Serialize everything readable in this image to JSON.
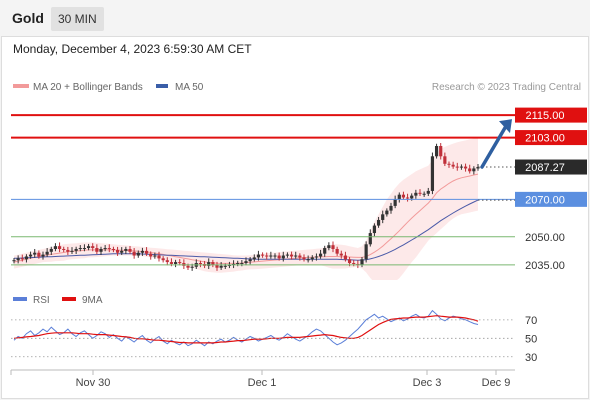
{
  "header": {
    "symbol": "Gold",
    "timeframe": "30 MIN",
    "datetime": "Monday, December 4, 2023 6:59:30 AM CET"
  },
  "colors": {
    "red_level": "#e01010",
    "blue_level": "#5b8fe0",
    "green_level": "#7ab870",
    "current_price_bg": "#2a2a2a",
    "arrow": "#2e5fa0",
    "bb_fill": "#fde3e3",
    "ma20": "#f29a9a",
    "ma50": "#4a5aa8",
    "rsi": "#5b7fd8",
    "rsi_ma": "#e01010"
  },
  "chart_data": [
    {
      "type": "line",
      "title": "",
      "legend": [
        {
          "name": "MA 20 + Bollinger Bands",
          "color": "#f29a9a"
        },
        {
          "name": "MA 50",
          "color": "#3a5ea8"
        }
      ],
      "legend_position": "top-left",
      "credit": "Research © 2023 Trading Central",
      "x_ticks": [
        "Nov 30",
        "Dec 1",
        "Dec 3",
        "Dec 9"
      ],
      "ylim": [
        2028,
        2122
      ],
      "key_levels": [
        {
          "value": 2115.0,
          "label": "2115.00",
          "kind": "resistance",
          "style": "red-box"
        },
        {
          "value": 2103.0,
          "label": "2103.00",
          "kind": "resistance",
          "style": "red-box"
        },
        {
          "value": 2070.0,
          "label": "2070.00",
          "kind": "pivot",
          "style": "blue-box"
        },
        {
          "value": 2050.0,
          "label": "2050.00",
          "kind": "support",
          "style": "green-text"
        },
        {
          "value": 2035.0,
          "label": "2035.00",
          "kind": "support",
          "style": "green-text"
        }
      ],
      "current_price": {
        "value": 2087.27,
        "label": "2087.27"
      },
      "projection": {
        "from": 2087.27,
        "to": 2115.0,
        "direction": "up"
      },
      "price_close": [
        2037.5,
        2038.5,
        2038.0,
        2039.5,
        2040.5,
        2041.5,
        2039.5,
        2040.5,
        2042.0,
        2043.5,
        2045.0,
        2043.5,
        2043.0,
        2042.0,
        2042.5,
        2043.5,
        2044.0,
        2044.0,
        2045.0,
        2044.0,
        2042.0,
        2043.5,
        2044.0,
        2043.5,
        2043.0,
        2041.5,
        2042.5,
        2043.5,
        2042.0,
        2040.0,
        2041.5,
        2042.5,
        2041.0,
        2039.5,
        2040.0,
        2038.5,
        2037.5,
        2036.5,
        2035.5,
        2036.5,
        2036.0,
        2034.5,
        2033.5,
        2034.0,
        2036.0,
        2035.5,
        2034.5,
        2036.5,
        2035.0,
        2033.5,
        2034.5,
        2034.5,
        2035.0,
        2035.5,
        2036.0,
        2036.0,
        2037.0,
        2038.0,
        2039.0,
        2040.5,
        2040.0,
        2039.5,
        2040.0,
        2040.0,
        2038.5,
        2040.0,
        2040.5,
        2039.5,
        2040.0,
        2039.0,
        2038.0,
        2038.0,
        2039.0,
        2039.5,
        2041.0,
        2044.0,
        2045.5,
        2043.5,
        2041.0,
        2040.0,
        2038.0,
        2036.0,
        2035.5,
        2035.0,
        2038.0,
        2046.0,
        2052.0,
        2056.0,
        2059.0,
        2062.0,
        2064.0,
        2066.5,
        2070.0,
        2072.5,
        2071.0,
        2070.5,
        2072.0,
        2073.5,
        2073.0,
        2073.0,
        2074.5,
        2093.0,
        2098.5,
        2093.0,
        2089.0,
        2088.5,
        2087.5,
        2087.0,
        2087.5,
        2086.5,
        2085.0,
        2086.5,
        2087.3
      ],
      "ma20": [
        2036.5,
        2037.0,
        2037.5,
        2038.0,
        2038.5,
        2039.0,
        2039.5,
        2040.0,
        2040.3,
        2040.6,
        2041.0,
        2041.3,
        2041.6,
        2042.0,
        2042.2,
        2042.4,
        2042.6,
        2042.8,
        2043.0,
        2043.0,
        2043.0,
        2043.0,
        2043.0,
        2043.0,
        2043.0,
        2042.9,
        2042.8,
        2042.7,
        2042.6,
        2042.5,
        2042.3,
        2042.1,
        2041.9,
        2041.6,
        2041.3,
        2041.0,
        2040.6,
        2040.2,
        2039.8,
        2039.4,
        2039.0,
        2038.6,
        2038.2,
        2037.8,
        2037.4,
        2037.0,
        2036.6,
        2036.3,
        2036.1,
        2035.9,
        2035.8,
        2035.8,
        2035.8,
        2035.8,
        2035.9,
        2036.0,
        2036.2,
        2036.4,
        2036.6,
        2036.8,
        2037.0,
        2037.2,
        2037.4,
        2037.6,
        2037.8,
        2038.0,
        2038.2,
        2038.4,
        2038.6,
        2038.8,
        2038.9,
        2039.0,
        2039.1,
        2039.2,
        2039.3,
        2039.4,
        2039.5,
        2039.5,
        2039.5,
        2039.4,
        2039.3,
        2039.2,
        2039.1,
        2039.0,
        2039.0,
        2039.5,
        2040.5,
        2041.8,
        2043.3,
        2045.0,
        2047.0,
        2049.0,
        2051.0,
        2053.2,
        2055.5,
        2057.8,
        2060.0,
        2062.0,
        2064.0,
        2066.0,
        2068.0,
        2070.5,
        2073.5,
        2075.5,
        2077.0,
        2078.5,
        2079.8,
        2080.8,
        2081.5,
        2082.0,
        2082.5,
        2083.0,
        2083.5
      ],
      "bb_upper": [
        2040.0,
        2040.5,
        2041.0,
        2041.5,
        2042.0,
        2042.5,
        2043.0,
        2043.5,
        2044.0,
        2044.5,
        2045.0,
        2045.5,
        2046.0,
        2046.2,
        2046.4,
        2046.6,
        2046.8,
        2047.0,
        2047.0,
        2047.0,
        2046.8,
        2046.6,
        2046.4,
        2046.2,
        2046.0,
        2045.8,
        2045.6,
        2045.4,
        2045.2,
        2045.0,
        2044.8,
        2044.6,
        2044.4,
        2044.2,
        2044.0,
        2043.8,
        2043.6,
        2043.4,
        2043.2,
        2043.0,
        2042.8,
        2042.6,
        2042.4,
        2042.2,
        2042.0,
        2041.8,
        2041.6,
        2041.4,
        2041.2,
        2041.0,
        2040.8,
        2040.6,
        2040.4,
        2040.2,
        2040.0,
        2040.0,
        2040.0,
        2040.2,
        2040.5,
        2040.8,
        2041.0,
        2041.2,
        2041.4,
        2041.6,
        2041.8,
        2042.0,
        2042.2,
        2042.4,
        2042.6,
        2042.8,
        2043.0,
        2043.2,
        2043.4,
        2043.6,
        2043.8,
        2044.5,
        2045.5,
        2046.0,
        2046.0,
        2045.8,
        2045.5,
        2045.0,
        2044.5,
        2044.0,
        2045.0,
        2048.0,
        2053.0,
        2058.0,
        2062.0,
        2066.0,
        2070.0,
        2073.0,
        2076.0,
        2078.5,
        2080.5,
        2082.0,
        2083.5,
        2085.0,
        2086.0,
        2087.0,
        2088.0,
        2091.0,
        2095.0,
        2097.0,
        2098.0,
        2099.0,
        2099.8,
        2100.5,
        2101.0,
        2101.5,
        2102.0,
        2102.5,
        2103.0
      ],
      "bb_lower": [
        2033.0,
        2033.5,
        2034.0,
        2034.5,
        2035.0,
        2035.5,
        2036.0,
        2036.5,
        2036.6,
        2036.7,
        2037.0,
        2037.1,
        2037.2,
        2037.8,
        2038.0,
        2038.2,
        2038.4,
        2038.6,
        2039.0,
        2039.0,
        2039.2,
        2039.4,
        2039.6,
        2039.8,
        2040.0,
        2040.0,
        2040.0,
        2040.0,
        2040.0,
        2040.0,
        2039.8,
        2039.6,
        2039.4,
        2039.0,
        2038.6,
        2038.2,
        2037.6,
        2037.0,
        2036.4,
        2035.8,
        2035.2,
        2034.6,
        2034.0,
        2033.4,
        2032.8,
        2032.2,
        2031.6,
        2031.2,
        2031.0,
        2030.8,
        2030.8,
        2031.0,
        2031.2,
        2031.4,
        2031.8,
        2032.0,
        2032.4,
        2032.6,
        2032.7,
        2032.8,
        2033.0,
        2033.2,
        2033.4,
        2033.6,
        2033.8,
        2034.0,
        2034.2,
        2034.4,
        2034.6,
        2034.8,
        2034.8,
        2034.8,
        2034.8,
        2034.8,
        2034.8,
        2034.3,
        2033.5,
        2033.0,
        2033.0,
        2033.0,
        2033.1,
        2033.4,
        2033.7,
        2034.0,
        2033.0,
        2031.0,
        2028.0,
        2025.6,
        2024.6,
        2024.0,
        2024.0,
        2025.0,
        2026.0,
        2027.9,
        2030.5,
        2033.6,
        2036.5,
        2039.0,
        2042.0,
        2045.0,
        2048.0,
        2050.0,
        2052.0,
        2054.0,
        2056.0,
        2058.0,
        2059.8,
        2061.1,
        2062.0,
        2062.5,
        2063.0,
        2063.5,
        2064.0
      ],
      "ma50": [
        2038.5,
        2038.6,
        2038.7,
        2038.8,
        2038.9,
        2039.0,
        2039.1,
        2039.2,
        2039.3,
        2039.4,
        2039.5,
        2039.6,
        2039.7,
        2039.8,
        2039.9,
        2040.0,
        2040.1,
        2040.2,
        2040.3,
        2040.4,
        2040.5,
        2040.6,
        2040.7,
        2040.8,
        2040.9,
        2041.0,
        2041.0,
        2041.0,
        2041.0,
        2041.0,
        2040.9,
        2040.8,
        2040.7,
        2040.6,
        2040.5,
        2040.4,
        2040.3,
        2040.2,
        2040.1,
        2040.0,
        2039.9,
        2039.8,
        2039.7,
        2039.6,
        2039.5,
        2039.4,
        2039.3,
        2039.2,
        2039.1,
        2039.0,
        2038.9,
        2038.8,
        2038.7,
        2038.6,
        2038.5,
        2038.4,
        2038.3,
        2038.2,
        2038.1,
        2038.0,
        2038.0,
        2038.0,
        2038.0,
        2038.0,
        2038.0,
        2038.0,
        2038.0,
        2038.0,
        2038.0,
        2038.0,
        2038.0,
        2038.0,
        2038.0,
        2038.0,
        2038.0,
        2038.0,
        2038.0,
        2038.0,
        2038.0,
        2037.9,
        2037.8,
        2037.7,
        2037.6,
        2037.5,
        2037.6,
        2037.8,
        2038.2,
        2038.8,
        2039.5,
        2040.3,
        2041.2,
        2042.2,
        2043.3,
        2044.5,
        2045.7,
        2047.0,
        2048.3,
        2049.6,
        2051.0,
        2052.4,
        2053.8,
        2055.4,
        2057.0,
        2058.6,
        2060.0,
        2061.4,
        2062.7,
        2064.0,
        2065.2,
        2066.4,
        2067.5,
        2068.6,
        2069.6
      ]
    },
    {
      "type": "line",
      "title": "",
      "legend": [
        {
          "name": "RSI",
          "color": "#5b7fd8"
        },
        {
          "name": "9MA",
          "color": "#e01010"
        }
      ],
      "legend_position": "top-left",
      "ylim": [
        20,
        85
      ],
      "y_ticks": [
        "70",
        "50",
        "30"
      ],
      "reference_lines": [
        70,
        50,
        30
      ],
      "rsi": [
        48,
        52,
        50,
        55,
        58,
        53,
        56,
        60,
        57,
        62,
        58,
        54,
        56,
        60,
        55,
        52,
        56,
        58,
        54,
        50,
        53,
        57,
        55,
        51,
        54,
        50,
        47,
        52,
        49,
        46,
        50,
        53,
        48,
        45,
        49,
        52,
        47,
        44,
        48,
        45,
        43,
        46,
        42,
        44,
        48,
        45,
        42,
        46,
        44,
        47,
        49,
        46,
        48,
        51,
        48,
        46,
        49,
        52,
        50,
        47,
        49,
        51,
        53,
        50,
        48,
        51,
        55,
        52,
        49,
        47,
        50,
        53,
        57,
        60,
        58,
        54,
        50,
        46,
        43,
        45,
        48,
        52,
        56,
        60,
        65,
        70,
        73,
        76,
        72,
        74,
        71,
        68,
        70,
        72,
        69,
        71,
        74,
        76,
        73,
        72,
        74,
        80,
        76,
        71,
        69,
        72,
        74,
        73,
        71,
        70,
        68,
        66,
        65
      ],
      "rsi_ma": [
        50,
        50.5,
        51,
        51.5,
        52,
        52.5,
        53,
        54,
        55,
        55.5,
        56,
        56,
        56,
        56,
        56,
        55.5,
        55,
        55,
        55,
        54.5,
        54,
        54,
        54,
        53.5,
        53,
        52.5,
        52,
        51.5,
        51,
        50,
        49.5,
        49.5,
        49,
        48.5,
        48,
        48,
        47.5,
        47,
        46.5,
        46,
        45.5,
        45.5,
        45,
        45,
        45,
        45,
        45,
        45,
        45,
        45.5,
        46,
        46,
        46.5,
        47,
        47.5,
        47.5,
        48,
        48.5,
        49,
        49,
        49,
        49.5,
        50,
        50,
        50,
        50.5,
        51,
        51,
        51,
        51,
        51.5,
        52,
        52.5,
        53,
        53.5,
        54,
        53.5,
        53,
        52,
        51,
        50.5,
        50,
        50,
        51,
        53,
        56,
        59,
        62,
        65,
        67,
        69,
        70.5,
        71,
        71.5,
        72,
        72,
        72.5,
        73,
        73,
        73,
        73.5,
        74,
        74.5,
        74,
        73.5,
        73,
        73,
        73,
        72.5,
        72,
        71,
        70,
        68.5
      ]
    }
  ]
}
